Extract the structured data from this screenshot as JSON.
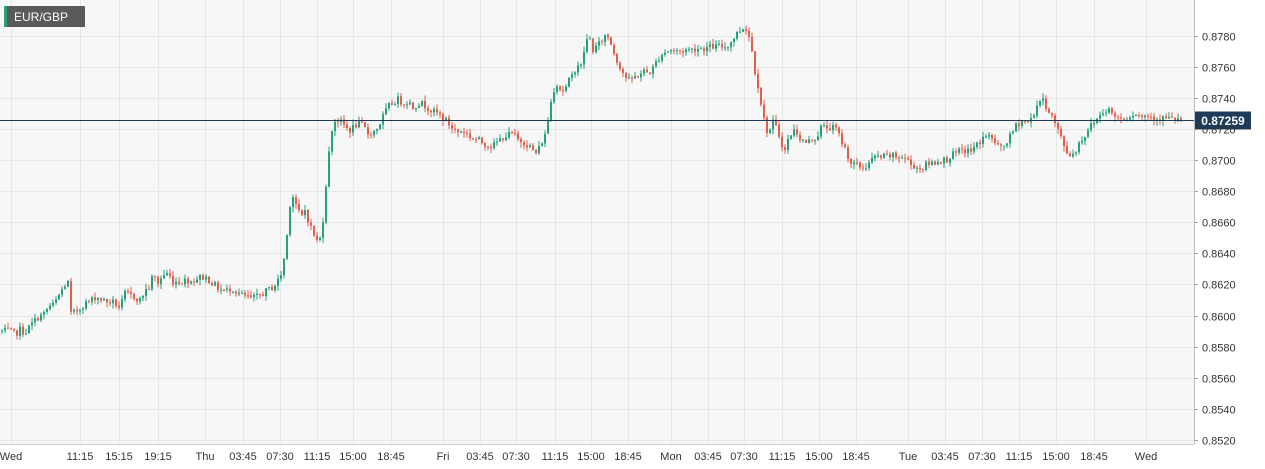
{
  "symbol": "EUR/GBP",
  "colors": {
    "bullish": "#26a17b",
    "bearish": "#e0604c",
    "current_price_line": "#1f3b5a",
    "background": "#f7f7f7",
    "grid": "#e6e6e6",
    "symbol_badge": "#5a5a5a",
    "symbol_badge_accent": "#26a17b"
  },
  "current_price": 0.87259,
  "current_price_label": "0.87259",
  "chart_data": {
    "type": "candlestick",
    "title": "EUR/GBP",
    "ylim": [
      0.852,
      0.8795
    ],
    "y_ticks": [
      "0.8780",
      "0.8760",
      "0.8740",
      "0.8720",
      "0.8700",
      "0.8680",
      "0.8660",
      "0.8640",
      "0.8620",
      "0.8600",
      "0.8580",
      "0.8560",
      "0.8540",
      "0.8520"
    ],
    "x_ticks": [
      "Wed",
      "11:15",
      "15:15",
      "19:15",
      "Thu",
      "03:45",
      "07:30",
      "11:15",
      "15:00",
      "18:45",
      "Fri",
      "03:45",
      "07:30",
      "11:15",
      "15:00",
      "18:45",
      "Mon",
      "03:45",
      "07:30",
      "11:15",
      "15:00",
      "18:45",
      "Tue",
      "03:45",
      "07:30",
      "11:15",
      "15:00",
      "18:45",
      "Wed"
    ],
    "grid": true,
    "close_path": [
      [
        0,
        0.859
      ],
      [
        8,
        0.859
      ],
      [
        14,
        0.8588
      ],
      [
        19,
        0.8591
      ],
      [
        24,
        0.8589
      ],
      [
        30,
        0.8594
      ],
      [
        37,
        0.8599
      ],
      [
        43,
        0.8601
      ],
      [
        48,
        0.8606
      ],
      [
        53,
        0.8607
      ],
      [
        58,
        0.8613
      ],
      [
        63,
        0.8619
      ],
      [
        67,
        0.8621
      ],
      [
        70,
        0.8601
      ],
      [
        74,
        0.8602
      ],
      [
        79,
        0.8605
      ],
      [
        84,
        0.8608
      ],
      [
        89,
        0.8609
      ],
      [
        94,
        0.8612
      ],
      [
        99,
        0.8611
      ],
      [
        104,
        0.8609
      ],
      [
        109,
        0.8609
      ],
      [
        114,
        0.8608
      ],
      [
        119,
        0.8605
      ],
      [
        124,
        0.8614
      ],
      [
        129,
        0.8613
      ],
      [
        134,
        0.8612
      ],
      [
        139,
        0.861
      ],
      [
        144,
        0.8616
      ],
      [
        148,
        0.8618
      ],
      [
        152,
        0.8626
      ],
      [
        157,
        0.8621
      ],
      [
        162,
        0.8626
      ],
      [
        167,
        0.8627
      ],
      [
        172,
        0.8622
      ],
      [
        176,
        0.8622
      ],
      [
        181,
        0.8622
      ],
      [
        186,
        0.8623
      ],
      [
        191,
        0.8622
      ],
      [
        196,
        0.8624
      ],
      [
        201,
        0.8625
      ],
      [
        206,
        0.8624
      ],
      [
        211,
        0.8621
      ],
      [
        216,
        0.8618
      ],
      [
        221,
        0.8616
      ],
      [
        226,
        0.8616
      ],
      [
        231,
        0.8618
      ],
      [
        236,
        0.8615
      ],
      [
        241,
        0.8613
      ],
      [
        246,
        0.8612
      ],
      [
        251,
        0.8611
      ],
      [
        256,
        0.8612
      ],
      [
        261,
        0.8614
      ],
      [
        266,
        0.8616
      ],
      [
        271,
        0.8618
      ],
      [
        276,
        0.8621
      ],
      [
        281,
        0.8628
      ],
      [
        285,
        0.8645
      ],
      [
        289,
        0.8672
      ],
      [
        292,
        0.8677
      ],
      [
        296,
        0.867
      ],
      [
        300,
        0.8662
      ],
      [
        304,
        0.8668
      ],
      [
        308,
        0.866
      ],
      [
        312,
        0.8653
      ],
      [
        316,
        0.8648
      ],
      [
        320,
        0.865
      ],
      [
        323,
        0.8668
      ],
      [
        326,
        0.8693
      ],
      [
        329,
        0.871
      ],
      [
        332,
        0.8725
      ],
      [
        336,
        0.8726
      ],
      [
        340,
        0.8724
      ],
      [
        344,
        0.8722
      ],
      [
        348,
        0.8719
      ],
      [
        352,
        0.8721
      ],
      [
        357,
        0.8724
      ],
      [
        362,
        0.8722
      ],
      [
        367,
        0.8717
      ],
      [
        372,
        0.8718
      ],
      [
        377,
        0.8721
      ],
      [
        382,
        0.8728
      ],
      [
        387,
        0.8734
      ],
      [
        392,
        0.8737
      ],
      [
        397,
        0.8739
      ],
      [
        402,
        0.8737
      ],
      [
        407,
        0.8738
      ],
      [
        412,
        0.8734
      ],
      [
        417,
        0.8737
      ],
      [
        422,
        0.8736
      ],
      [
        427,
        0.8734
      ],
      [
        432,
        0.8731
      ],
      [
        437,
        0.873
      ],
      [
        442,
        0.8727
      ],
      [
        447,
        0.8724
      ],
      [
        452,
        0.872
      ],
      [
        457,
        0.8718
      ],
      [
        462,
        0.8719
      ],
      [
        467,
        0.8716
      ],
      [
        472,
        0.8714
      ],
      [
        477,
        0.8713
      ],
      [
        482,
        0.8711
      ],
      [
        487,
        0.871
      ],
      [
        492,
        0.8709
      ],
      [
        497,
        0.8712
      ],
      [
        502,
        0.8715
      ],
      [
        507,
        0.8716
      ],
      [
        512,
        0.8717
      ],
      [
        517,
        0.8713
      ],
      [
        522,
        0.8712
      ],
      [
        527,
        0.871
      ],
      [
        532,
        0.8706
      ],
      [
        536,
        0.8704
      ],
      [
        540,
        0.8711
      ],
      [
        544,
        0.8716
      ],
      [
        548,
        0.873
      ],
      [
        552,
        0.8745
      ],
      [
        556,
        0.8749
      ],
      [
        560,
        0.8745
      ],
      [
        564,
        0.8745
      ],
      [
        568,
        0.8751
      ],
      [
        572,
        0.8755
      ],
      [
        576,
        0.8762
      ],
      [
        580,
        0.876
      ],
      [
        584,
        0.8774
      ],
      [
        588,
        0.878
      ],
      [
        592,
        0.8771
      ],
      [
        596,
        0.8773
      ],
      [
        600,
        0.8776
      ],
      [
        604,
        0.878
      ],
      [
        608,
        0.8779
      ],
      [
        612,
        0.8771
      ],
      [
        616,
        0.8764
      ],
      [
        620,
        0.8759
      ],
      [
        624,
        0.8754
      ],
      [
        628,
        0.8751
      ],
      [
        633,
        0.8753
      ],
      [
        638,
        0.8755
      ],
      [
        643,
        0.8757
      ],
      [
        648,
        0.8756
      ],
      [
        652,
        0.8759
      ],
      [
        656,
        0.8764
      ],
      [
        660,
        0.8768
      ],
      [
        665,
        0.877
      ],
      [
        670,
        0.8771
      ],
      [
        675,
        0.877
      ],
      [
        680,
        0.877
      ],
      [
        685,
        0.8771
      ],
      [
        690,
        0.8771
      ],
      [
        695,
        0.8772
      ],
      [
        700,
        0.8772
      ],
      [
        705,
        0.8772
      ],
      [
        710,
        0.8773
      ],
      [
        715,
        0.8773
      ],
      [
        720,
        0.8773
      ],
      [
        725,
        0.8773
      ],
      [
        730,
        0.8776
      ],
      [
        735,
        0.8781
      ],
      [
        740,
        0.8784
      ],
      [
        744,
        0.8786
      ],
      [
        747,
        0.8782
      ],
      [
        750,
        0.8775
      ],
      [
        753,
        0.876
      ],
      [
        756,
        0.8752
      ],
      [
        759,
        0.8741
      ],
      [
        762,
        0.8729
      ],
      [
        765,
        0.872
      ],
      [
        768,
        0.8718
      ],
      [
        772,
        0.8724
      ],
      [
        776,
        0.872
      ],
      [
        780,
        0.8712
      ],
      [
        784,
        0.8706
      ],
      [
        788,
        0.8715
      ],
      [
        792,
        0.8719
      ],
      [
        796,
        0.8718
      ],
      [
        800,
        0.8713
      ],
      [
        804,
        0.8711
      ],
      [
        808,
        0.8712
      ],
      [
        812,
        0.8714
      ],
      [
        816,
        0.8715
      ],
      [
        820,
        0.8721
      ],
      [
        825,
        0.8721
      ],
      [
        830,
        0.8721
      ],
      [
        835,
        0.872
      ],
      [
        840,
        0.8713
      ],
      [
        845,
        0.8706
      ],
      [
        850,
        0.8698
      ],
      [
        855,
        0.8697
      ],
      [
        860,
        0.8695
      ],
      [
        865,
        0.8696
      ],
      [
        870,
        0.87
      ],
      [
        875,
        0.8702
      ],
      [
        880,
        0.8702
      ],
      [
        885,
        0.8702
      ],
      [
        890,
        0.8703
      ],
      [
        895,
        0.8702
      ],
      [
        900,
        0.8702
      ],
      [
        905,
        0.8701
      ],
      [
        910,
        0.8697
      ],
      [
        915,
        0.8696
      ],
      [
        920,
        0.8694
      ],
      [
        925,
        0.8697
      ],
      [
        930,
        0.8698
      ],
      [
        935,
        0.8699
      ],
      [
        940,
        0.87
      ],
      [
        945,
        0.87
      ],
      [
        950,
        0.8703
      ],
      [
        955,
        0.8704
      ],
      [
        960,
        0.8706
      ],
      [
        965,
        0.8706
      ],
      [
        970,
        0.8706
      ],
      [
        975,
        0.8709
      ],
      [
        980,
        0.8713
      ],
      [
        985,
        0.8716
      ],
      [
        990,
        0.8714
      ],
      [
        995,
        0.8711
      ],
      [
        1000,
        0.8707
      ],
      [
        1005,
        0.8711
      ],
      [
        1010,
        0.8716
      ],
      [
        1015,
        0.8722
      ],
      [
        1019,
        0.8725
      ],
      [
        1023,
        0.8725
      ],
      [
        1027,
        0.8724
      ],
      [
        1031,
        0.8727
      ],
      [
        1035,
        0.8734
      ],
      [
        1039,
        0.8739
      ],
      [
        1043,
        0.8737
      ],
      [
        1047,
        0.8733
      ],
      [
        1051,
        0.8728
      ],
      [
        1055,
        0.8722
      ],
      [
        1059,
        0.8716
      ],
      [
        1063,
        0.8709
      ],
      [
        1067,
        0.8704
      ],
      [
        1071,
        0.8703
      ],
      [
        1075,
        0.8707
      ],
      [
        1079,
        0.8712
      ],
      [
        1083,
        0.8715
      ],
      [
        1087,
        0.872
      ],
      [
        1091,
        0.8723
      ],
      [
        1095,
        0.8726
      ],
      [
        1099,
        0.8729
      ],
      [
        1103,
        0.8732
      ],
      [
        1107,
        0.8733
      ],
      [
        1111,
        0.873
      ],
      [
        1115,
        0.8728
      ],
      [
        1119,
        0.8727
      ],
      [
        1123,
        0.8727
      ],
      [
        1127,
        0.8728
      ],
      [
        1131,
        0.873
      ],
      [
        1135,
        0.873
      ],
      [
        1139,
        0.8728
      ],
      [
        1143,
        0.8728
      ],
      [
        1147,
        0.8729
      ],
      [
        1151,
        0.8728
      ],
      [
        1155,
        0.8727
      ],
      [
        1159,
        0.8727
      ],
      [
        1163,
        0.8727
      ],
      [
        1167,
        0.8727
      ],
      [
        1171,
        0.8726
      ],
      [
        1175,
        0.8726
      ],
      [
        1180,
        0.8726
      ]
    ]
  }
}
